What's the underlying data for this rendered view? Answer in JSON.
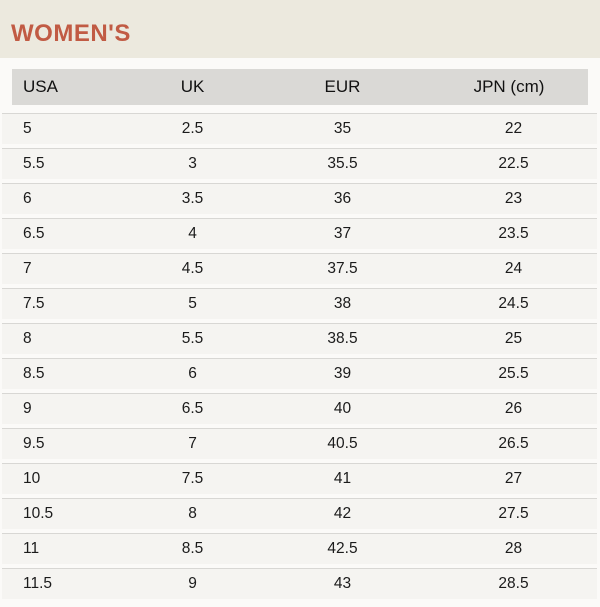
{
  "title": "WOMEN'S",
  "table": {
    "headers": [
      "USA",
      "UK",
      "EUR",
      "JPN (cm)"
    ],
    "rows": [
      [
        "5",
        "2.5",
        "35",
        "22"
      ],
      [
        "5.5",
        "3",
        "35.5",
        "22.5"
      ],
      [
        "6",
        "3.5",
        "36",
        "23"
      ],
      [
        "6.5",
        "4",
        "37",
        "23.5"
      ],
      [
        "7",
        "4.5",
        "37.5",
        "24"
      ],
      [
        "7.5",
        "5",
        "38",
        "24.5"
      ],
      [
        "8",
        "5.5",
        "38.5",
        "25"
      ],
      [
        "8.5",
        "6",
        "39",
        "25.5"
      ],
      [
        "9",
        "6.5",
        "40",
        "26"
      ],
      [
        "9.5",
        "7",
        "40.5",
        "26.5"
      ],
      [
        "10",
        "7.5",
        "41",
        "27"
      ],
      [
        "10.5",
        "8",
        "42",
        "27.5"
      ],
      [
        "11",
        "8.5",
        "42.5",
        "28"
      ],
      [
        "11.5",
        "9",
        "43",
        "28.5"
      ]
    ]
  },
  "colors": {
    "title_text": "#C15B44",
    "banner_bg": "#ECE9DE",
    "header_row_bg": "#DAD9D6",
    "row_bg": "#F5F4F1",
    "page_bg": "#FBFAF8",
    "separator_line": "#D8D7D4",
    "body_text": "#1B1B1B"
  }
}
